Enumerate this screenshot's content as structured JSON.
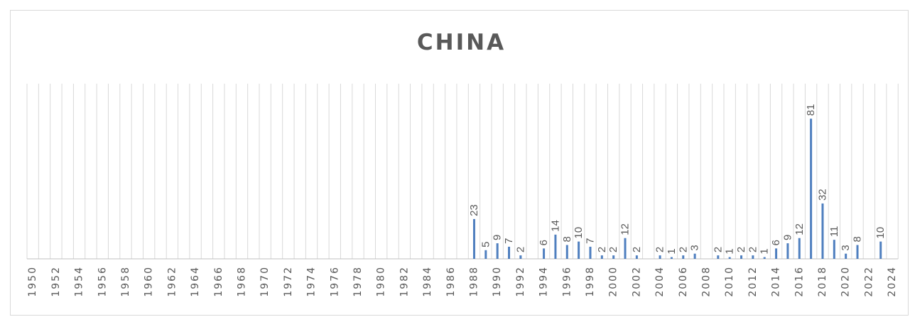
{
  "chart_data": {
    "type": "bar",
    "title": "CHINA",
    "xlabel": "",
    "ylabel": "",
    "grid": true,
    "bar_color": "#4f7fbf",
    "grid_color": "#d9d9d9",
    "label_color": "#595959",
    "categories": [
      "1950",
      "1951",
      "1952",
      "1953",
      "1954",
      "1955",
      "1956",
      "1957",
      "1958",
      "1959",
      "1960",
      "1961",
      "1962",
      "1963",
      "1964",
      "1965",
      "1966",
      "1967",
      "1968",
      "1969",
      "1970",
      "1971",
      "1972",
      "1973",
      "1974",
      "1975",
      "1976",
      "1977",
      "1978",
      "1979",
      "1980",
      "1981",
      "1982",
      "1983",
      "1984",
      "1985",
      "1986",
      "1987",
      "1988",
      "1989",
      "1990",
      "1991",
      "1992",
      "1993",
      "1994",
      "1995",
      "1996",
      "1997",
      "1998",
      "1999",
      "2000",
      "2001",
      "2002",
      "2003",
      "2004",
      "2005",
      "2006",
      "2007",
      "2008",
      "2009",
      "2010",
      "2011",
      "2012",
      "2013",
      "2014",
      "2015",
      "2016",
      "2017",
      "2018",
      "2019",
      "2020",
      "2021",
      "2022",
      "2023",
      "2024"
    ],
    "tick_labels": [
      "1950",
      "1952",
      "1954",
      "1956",
      "1958",
      "1960",
      "1962",
      "1964",
      "1966",
      "1968",
      "1970",
      "1972",
      "1974",
      "1976",
      "1978",
      "1980",
      "1982",
      "1984",
      "1986",
      "1988",
      "1990",
      "1992",
      "1994",
      "1996",
      "1998",
      "2000",
      "2002",
      "2004",
      "2006",
      "2008",
      "2010",
      "2012",
      "2014",
      "2016",
      "2018",
      "2020",
      "2022",
      "2024"
    ],
    "values": [
      null,
      null,
      null,
      null,
      null,
      null,
      null,
      null,
      null,
      null,
      null,
      null,
      null,
      null,
      null,
      null,
      null,
      null,
      null,
      null,
      null,
      null,
      null,
      null,
      null,
      null,
      null,
      null,
      null,
      null,
      null,
      null,
      null,
      null,
      null,
      null,
      null,
      null,
      23,
      5,
      9,
      7,
      2,
      null,
      6,
      14,
      8,
      10,
      7,
      2,
      2,
      12,
      2,
      null,
      2,
      1,
      2,
      3,
      null,
      2,
      1,
      2,
      2,
      1,
      6,
      9,
      12,
      81,
      32,
      11,
      3,
      8,
      null,
      10,
      null
    ],
    "ylim": [
      0,
      100
    ]
  }
}
